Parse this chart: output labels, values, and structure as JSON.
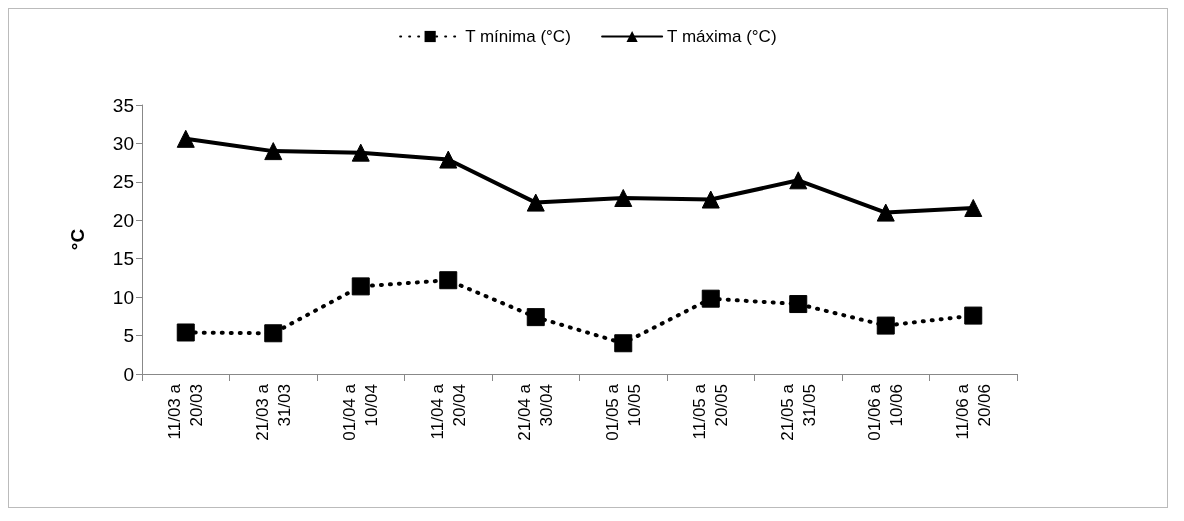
{
  "chart_data": {
    "type": "line",
    "ylabel": "°C",
    "categories": [
      "11/03 a 20/03",
      "21/03 a 31/03",
      "01/04 a 10/04",
      "11/04 a 20/04",
      "21/04 a 30/04",
      "01/05 a 10/05",
      "11/05 a 20/05",
      "21/05 a 31/05",
      "01/06 a 10/06",
      "11/06 a 20/06"
    ],
    "series": [
      {
        "name": "T mínima (°C)",
        "color": "#000000",
        "marker": "square",
        "line_style": "dotted",
        "values": [
          5.4,
          5.3,
          11.4,
          12.2,
          7.4,
          4.0,
          9.8,
          9.1,
          6.3,
          7.6
        ]
      },
      {
        "name": "T máxima (°C)",
        "color": "#000000",
        "marker": "triangle",
        "line_style": "solid",
        "values": [
          30.6,
          29.0,
          28.8,
          27.9,
          22.3,
          22.9,
          22.7,
          25.2,
          21.0,
          21.6
        ]
      }
    ],
    "ylim": [
      0,
      35
    ],
    "yticks": [
      0,
      5,
      10,
      15,
      20,
      25,
      30,
      35
    ],
    "grid": false,
    "legend": "top"
  }
}
